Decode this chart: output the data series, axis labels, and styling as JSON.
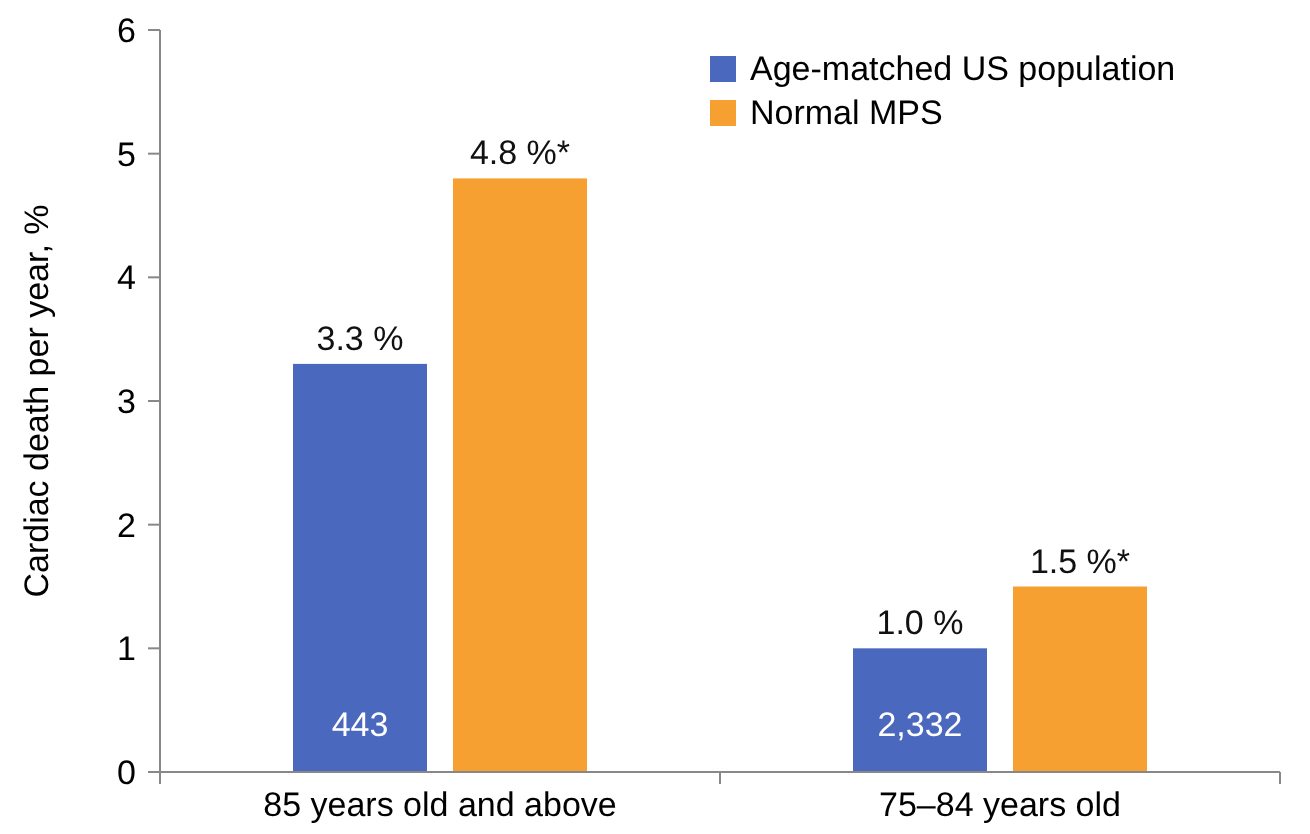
{
  "chart_data": {
    "type": "bar",
    "ylabel": "Cardiac death per year, %",
    "categories": [
      "85 years old and above",
      "75–84 years old"
    ],
    "series": [
      {
        "name": "Age-matched US population",
        "color": "#4a68bd",
        "values": [
          3.3,
          1.0
        ],
        "value_labels": [
          "3.3 %",
          "1.0 %"
        ]
      },
      {
        "name": "Normal MPS",
        "color": "#f6a032",
        "values": [
          4.8,
          1.5
        ],
        "value_labels": [
          "4.8 %*",
          "1.5 %*"
        ]
      }
    ],
    "annotations": [
      "443",
      "2,332"
    ],
    "ylim": [
      0,
      6
    ],
    "yticks": [
      0,
      1,
      2,
      3,
      4,
      5,
      6
    ],
    "grid": false,
    "legend": "top right"
  }
}
